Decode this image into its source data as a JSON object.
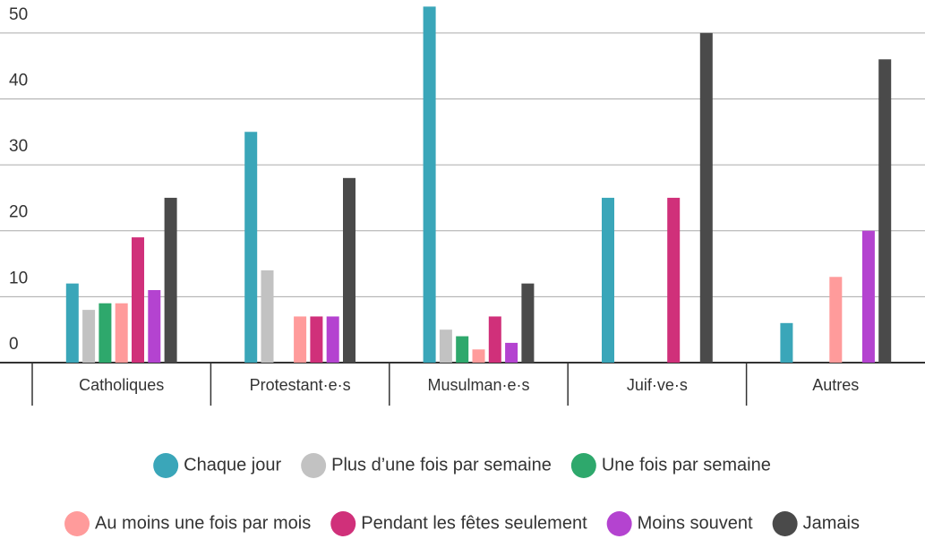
{
  "chart_data": {
    "type": "bar",
    "categories": [
      "Catholiques",
      "Protestant·e·s",
      "Musulman·e·s",
      "Juif·ve·s",
      "Autres"
    ],
    "series": [
      {
        "name": "Chaque jour",
        "color": "#3aa6b9",
        "values": [
          12,
          35,
          54,
          25,
          6
        ]
      },
      {
        "name": "Plus d’une fois par semaine",
        "color": "#c2c2c2",
        "values": [
          8,
          14,
          5,
          0,
          0
        ]
      },
      {
        "name": "Une fois par semaine",
        "color": "#2ea86c",
        "values": [
          9,
          0,
          4,
          0,
          0
        ]
      },
      {
        "name": "Au moins une fois par mois",
        "color": "#ff9b9b",
        "values": [
          9,
          7,
          2,
          0,
          13
        ]
      },
      {
        "name": "Pendant les fêtes seulement",
        "color": "#d0307a",
        "values": [
          19,
          7,
          7,
          25,
          0
        ]
      },
      {
        "name": "Moins souvent",
        "color": "#b443d0",
        "values": [
          11,
          7,
          3,
          0,
          20
        ]
      },
      {
        "name": "Jamais",
        "color": "#4a4a4a",
        "values": [
          25,
          28,
          12,
          50,
          46
        ]
      }
    ],
    "ylim": [
      0,
      55
    ],
    "yticks": [
      0,
      10,
      20,
      30,
      40,
      50
    ],
    "grid": true
  }
}
